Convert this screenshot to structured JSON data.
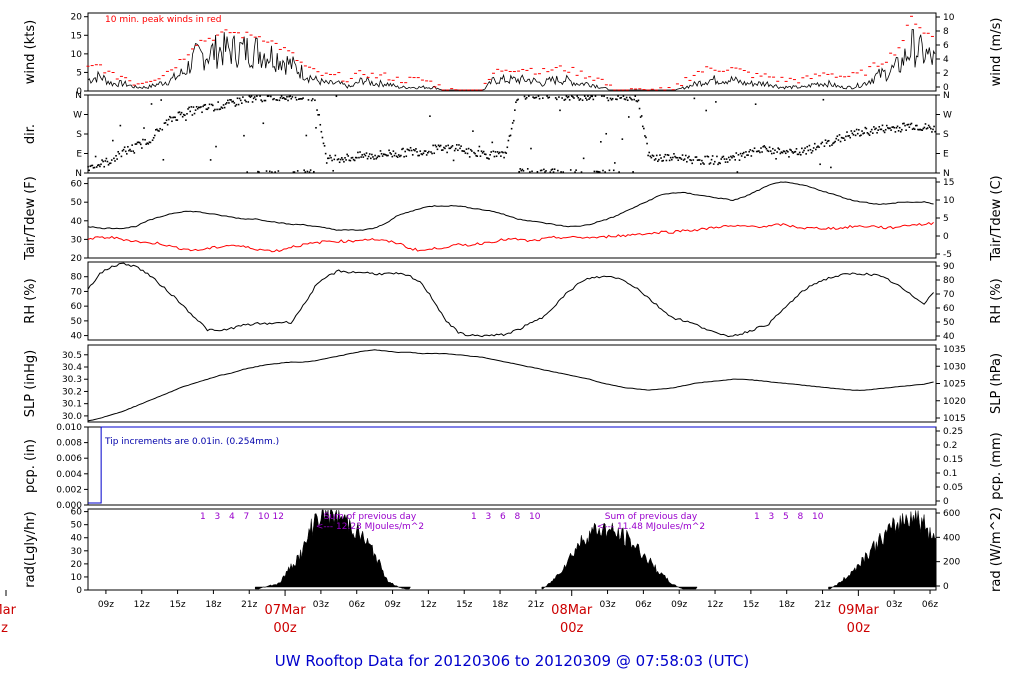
{
  "title": "UW Rooftop Data for 20120306  to  20120309 @ 07:58:03  (UTC)",
  "colors": {
    "wind": "#000000",
    "peak": "#ff0000",
    "dew": "#ff0000",
    "precip": "#0000cc",
    "annot_precip": "#0000aa",
    "annot_rad": "#9900cc",
    "date_label": "#cc0000",
    "title": "#0000cc"
  },
  "chart_data": [
    {
      "type": "line",
      "name": "wind",
      "ylabel": "wind (kts)",
      "y2label": "wind (m/s)",
      "ylim": [
        0,
        21
      ],
      "yticks": [
        0,
        5,
        10,
        15,
        20
      ],
      "y2ticks": [
        "0",
        "2",
        "4",
        "6",
        "8",
        "10"
      ],
      "annotation": "10 min. peak winds  in red",
      "x_hours": [
        0,
        1,
        2,
        3,
        4,
        5,
        6,
        7,
        8,
        9,
        10,
        11,
        12,
        13,
        14,
        15,
        16,
        17,
        18,
        19,
        20,
        21,
        22,
        23,
        24,
        25,
        26,
        27,
        28,
        29,
        30,
        31,
        32,
        33,
        34,
        35,
        36,
        37,
        38,
        39,
        40,
        41,
        42,
        43,
        44,
        45,
        46,
        47,
        48,
        49,
        50,
        51,
        52,
        53,
        54,
        55,
        56,
        57,
        58,
        59,
        60,
        61,
        62,
        63,
        64,
        65,
        66,
        67,
        68,
        69,
        70,
        71
      ],
      "values": [
        3,
        4,
        2,
        2,
        1,
        1,
        2,
        3,
        5,
        9,
        10,
        11,
        11,
        11,
        11,
        10,
        9,
        7,
        5,
        3,
        2,
        2,
        1,
        3,
        2,
        2,
        1,
        1,
        1,
        1,
        0,
        0,
        0,
        0,
        3,
        3,
        3,
        3,
        2,
        3,
        3,
        2,
        2,
        1,
        0,
        0,
        0,
        0,
        0,
        0,
        1,
        2,
        3,
        3,
        3,
        2,
        2,
        2,
        1,
        1,
        1,
        2,
        2,
        1,
        1,
        2,
        4,
        5,
        7,
        12,
        10,
        8
      ],
      "peaks": [
        6,
        7,
        4,
        4,
        2,
        3,
        4,
        6,
        9,
        13,
        14,
        15,
        16,
        15,
        15,
        14,
        12,
        10,
        7,
        5,
        4,
        4,
        3,
        5,
        4,
        4,
        3,
        3,
        3,
        2,
        0,
        0,
        0,
        0,
        5,
        6,
        6,
        6,
        5,
        6,
        6,
        5,
        4,
        3,
        0,
        0,
        0,
        0,
        0,
        0,
        3,
        5,
        6,
        6,
        6,
        5,
        4,
        4,
        3,
        3,
        3,
        4,
        5,
        4,
        4,
        5,
        7,
        9,
        12,
        20,
        16,
        14
      ]
    },
    {
      "type": "scatter",
      "name": "dir.",
      "ylabel": "dir.",
      "ylim": [
        0,
        360
      ],
      "yticks": [
        "N",
        "E",
        "S",
        "W",
        "N"
      ],
      "x_hours": [
        0,
        1,
        2,
        3,
        4,
        5,
        6,
        7,
        8,
        9,
        10,
        11,
        12,
        13,
        14,
        15,
        16,
        17,
        18,
        19,
        20,
        21,
        22,
        23,
        24,
        25,
        26,
        27,
        28,
        29,
        30,
        31,
        32,
        33,
        34,
        35,
        36,
        37,
        38,
        39,
        40,
        41,
        42,
        43,
        44,
        45,
        46,
        47,
        48,
        49,
        50,
        51,
        52,
        53,
        54,
        55,
        56,
        57,
        58,
        59,
        60,
        61,
        62,
        63,
        64,
        65,
        66,
        67,
        68,
        69,
        70,
        71
      ],
      "values": [
        30,
        40,
        60,
        100,
        120,
        150,
        200,
        250,
        280,
        290,
        300,
        310,
        320,
        340,
        350,
        350,
        355,
        355,
        355,
        355,
        60,
        70,
        70,
        80,
        80,
        90,
        90,
        100,
        100,
        110,
        110,
        120,
        90,
        90,
        80,
        80,
        360,
        360,
        360,
        360,
        355,
        355,
        355,
        355,
        355,
        355,
        350,
        70,
        70,
        70,
        70,
        60,
        60,
        60,
        70,
        80,
        100,
        110,
        100,
        90,
        100,
        120,
        140,
        160,
        180,
        190,
        200,
        205,
        210,
        220,
        210,
        200
      ]
    },
    {
      "type": "line",
      "name": "Tair/Tdew",
      "ylabel": "Tair/Tdew (F)",
      "y2label": "Tair/Tdew (C)",
      "ylim": [
        20,
        63
      ],
      "yticks": [
        20,
        30,
        40,
        50,
        60
      ],
      "y2ticks": [
        "-5",
        "0",
        "5",
        "10",
        "15"
      ],
      "series": [
        {
          "name": "Tair",
          "values": [
            37,
            36,
            36,
            36,
            37,
            40,
            42,
            44,
            45,
            45,
            44,
            43,
            42,
            41,
            41,
            40,
            39,
            38,
            38,
            37,
            36,
            35,
            35,
            35,
            36,
            39,
            43,
            45,
            47,
            48,
            48,
            48,
            47,
            46,
            45,
            43,
            41,
            40,
            39,
            38,
            37,
            37,
            38,
            40,
            42,
            45,
            48,
            51,
            54,
            55,
            55,
            54,
            53,
            52,
            51,
            53,
            56,
            59,
            61,
            60,
            59,
            57,
            55,
            53,
            51,
            50,
            49,
            49,
            50,
            50,
            50,
            49
          ]
        },
        {
          "name": "Tdew",
          "values": [
            30,
            31,
            31,
            30,
            29,
            28,
            28,
            26,
            25,
            24,
            25,
            26,
            27,
            26,
            25,
            24,
            24,
            26,
            27,
            28,
            29,
            29,
            29,
            30,
            30,
            29,
            28,
            25,
            24,
            25,
            26,
            27,
            27,
            28,
            29,
            30,
            30,
            29,
            30,
            31,
            31,
            31,
            31,
            31,
            32,
            32,
            33,
            33,
            34,
            34,
            35,
            35,
            36,
            37,
            37,
            37,
            37,
            37,
            38,
            37,
            36,
            36,
            36,
            36,
            37,
            37,
            37,
            36,
            37,
            38,
            38,
            39
          ]
        }
      ]
    },
    {
      "type": "line",
      "name": "RH",
      "ylabel": "RH (%)",
      "y2label": "RH (%)",
      "ylim": [
        37,
        90
      ],
      "yticks": [
        40,
        50,
        60,
        70,
        80
      ],
      "y2ticks": [
        "40",
        "50",
        "60",
        "70",
        "80",
        "90"
      ],
      "values": [
        72,
        82,
        87,
        89,
        87,
        82,
        75,
        68,
        60,
        52,
        44,
        43,
        45,
        47,
        48,
        48,
        49,
        49,
        60,
        73,
        80,
        84,
        83,
        83,
        82,
        82,
        82,
        80,
        75,
        63,
        50,
        42,
        40,
        40,
        40,
        41,
        44,
        48,
        52,
        60,
        68,
        75,
        79,
        80,
        80,
        77,
        72,
        65,
        58,
        52,
        50,
        47,
        44,
        40,
        40,
        42,
        45,
        48,
        56,
        64,
        71,
        76,
        79,
        81,
        82,
        82,
        81,
        78,
        73,
        67,
        62,
        71
      ]
    },
    {
      "type": "line",
      "name": "SLP",
      "ylabel": "SLP (inHg)",
      "y2label": "SLP (hPa)",
      "ylim": [
        29.95,
        30.58
      ],
      "yticks": [
        30.0,
        30.1,
        30.2,
        30.3,
        30.4,
        30.5
      ],
      "y2ticks": [
        "1015",
        "1020",
        "1025",
        "1030",
        "1035"
      ],
      "values": [
        29.96,
        29.98,
        30.01,
        30.04,
        30.08,
        30.12,
        30.16,
        30.2,
        30.24,
        30.27,
        30.3,
        30.33,
        30.35,
        30.38,
        30.4,
        30.42,
        30.43,
        30.44,
        30.44,
        30.45,
        30.47,
        30.49,
        30.51,
        30.53,
        30.54,
        30.53,
        30.52,
        30.52,
        30.51,
        30.51,
        30.51,
        30.5,
        30.49,
        30.48,
        30.46,
        30.44,
        30.42,
        30.4,
        30.38,
        30.36,
        30.34,
        30.32,
        30.3,
        30.27,
        30.25,
        30.23,
        30.22,
        30.21,
        30.22,
        30.23,
        30.25,
        30.27,
        30.28,
        30.29,
        30.3,
        30.3,
        30.29,
        30.28,
        30.27,
        30.26,
        30.25,
        30.24,
        30.23,
        30.22,
        30.21,
        30.21,
        30.22,
        30.23,
        30.24,
        30.25,
        30.26,
        30.28
      ]
    },
    {
      "type": "line",
      "name": "pcp.",
      "ylabel": "pcp. (in)",
      "y2label": "pcp. (mm)",
      "ylim": [
        0,
        0.01
      ],
      "yticks": [
        "0.000",
        "0.002",
        "0.004",
        "0.006",
        "0.008",
        "0.010"
      ],
      "y2ticks": [
        "0",
        "0.05",
        "0.1",
        "0.15",
        "0.2",
        "0.25"
      ],
      "annotation": "Tip increments are 0.01in. (0.254mm.)",
      "step_hour": 1.1,
      "values_before": 0,
      "values_after": 0.01
    },
    {
      "type": "area",
      "name": "rad",
      "ylabel": "rad(Lgly/hr)",
      "y2label": "rad (W/m^2)",
      "ylim": [
        0,
        62
      ],
      "yticks": [
        0,
        10,
        20,
        30,
        40,
        50,
        60
      ],
      "y2ticks": [
        "0",
        "200",
        "400",
        "600"
      ],
      "x_hours": [
        14,
        15,
        16,
        17,
        18,
        19,
        20,
        21,
        22,
        23,
        24,
        25,
        26,
        27,
        38,
        39,
        40,
        41,
        42,
        43,
        44,
        45,
        46,
        47,
        48,
        49,
        50,
        51,
        62,
        63,
        64,
        65,
        66,
        67,
        68,
        69,
        70,
        71
      ],
      "values": [
        0,
        3,
        5,
        18,
        30,
        55,
        60,
        57,
        50,
        40,
        28,
        8,
        2,
        0,
        0,
        8,
        20,
        34,
        44,
        47,
        44,
        40,
        32,
        22,
        12,
        4,
        0,
        0,
        0,
        6,
        14,
        25,
        35,
        44,
        52,
        58,
        50,
        40
      ],
      "sum_labels": [
        {
          "text": "Sum of previous day",
          "value": "<--- 12.23 MJoules/m^2"
        },
        {
          "text": "Sum of previous day",
          "value": "<--- 11.48 MJoules/m^2"
        }
      ],
      "hour_marks": [
        [
          "1",
          "3",
          "4",
          "7",
          "10",
          "12"
        ],
        [
          "1",
          "3",
          "6",
          "8",
          "10"
        ],
        [
          "1",
          "3",
          "5",
          "8",
          "10"
        ]
      ]
    }
  ],
  "x_axis": {
    "tick_labels": [
      "09z",
      "12z",
      "15z",
      "18z",
      "21z",
      "03z",
      "06z",
      "09z",
      "12z",
      "15z",
      "18z",
      "21z",
      "03z",
      "06z",
      "09z",
      "12z",
      "15z",
      "18z",
      "21z",
      "03z",
      "06z"
    ],
    "date_labels": [
      {
        "top": "Mar",
        "bottom": "z"
      },
      {
        "top": "07Mar",
        "bottom": "00z"
      },
      {
        "top": "08Mar",
        "bottom": "00z"
      },
      {
        "top": "09Mar",
        "bottom": "00z"
      }
    ]
  }
}
